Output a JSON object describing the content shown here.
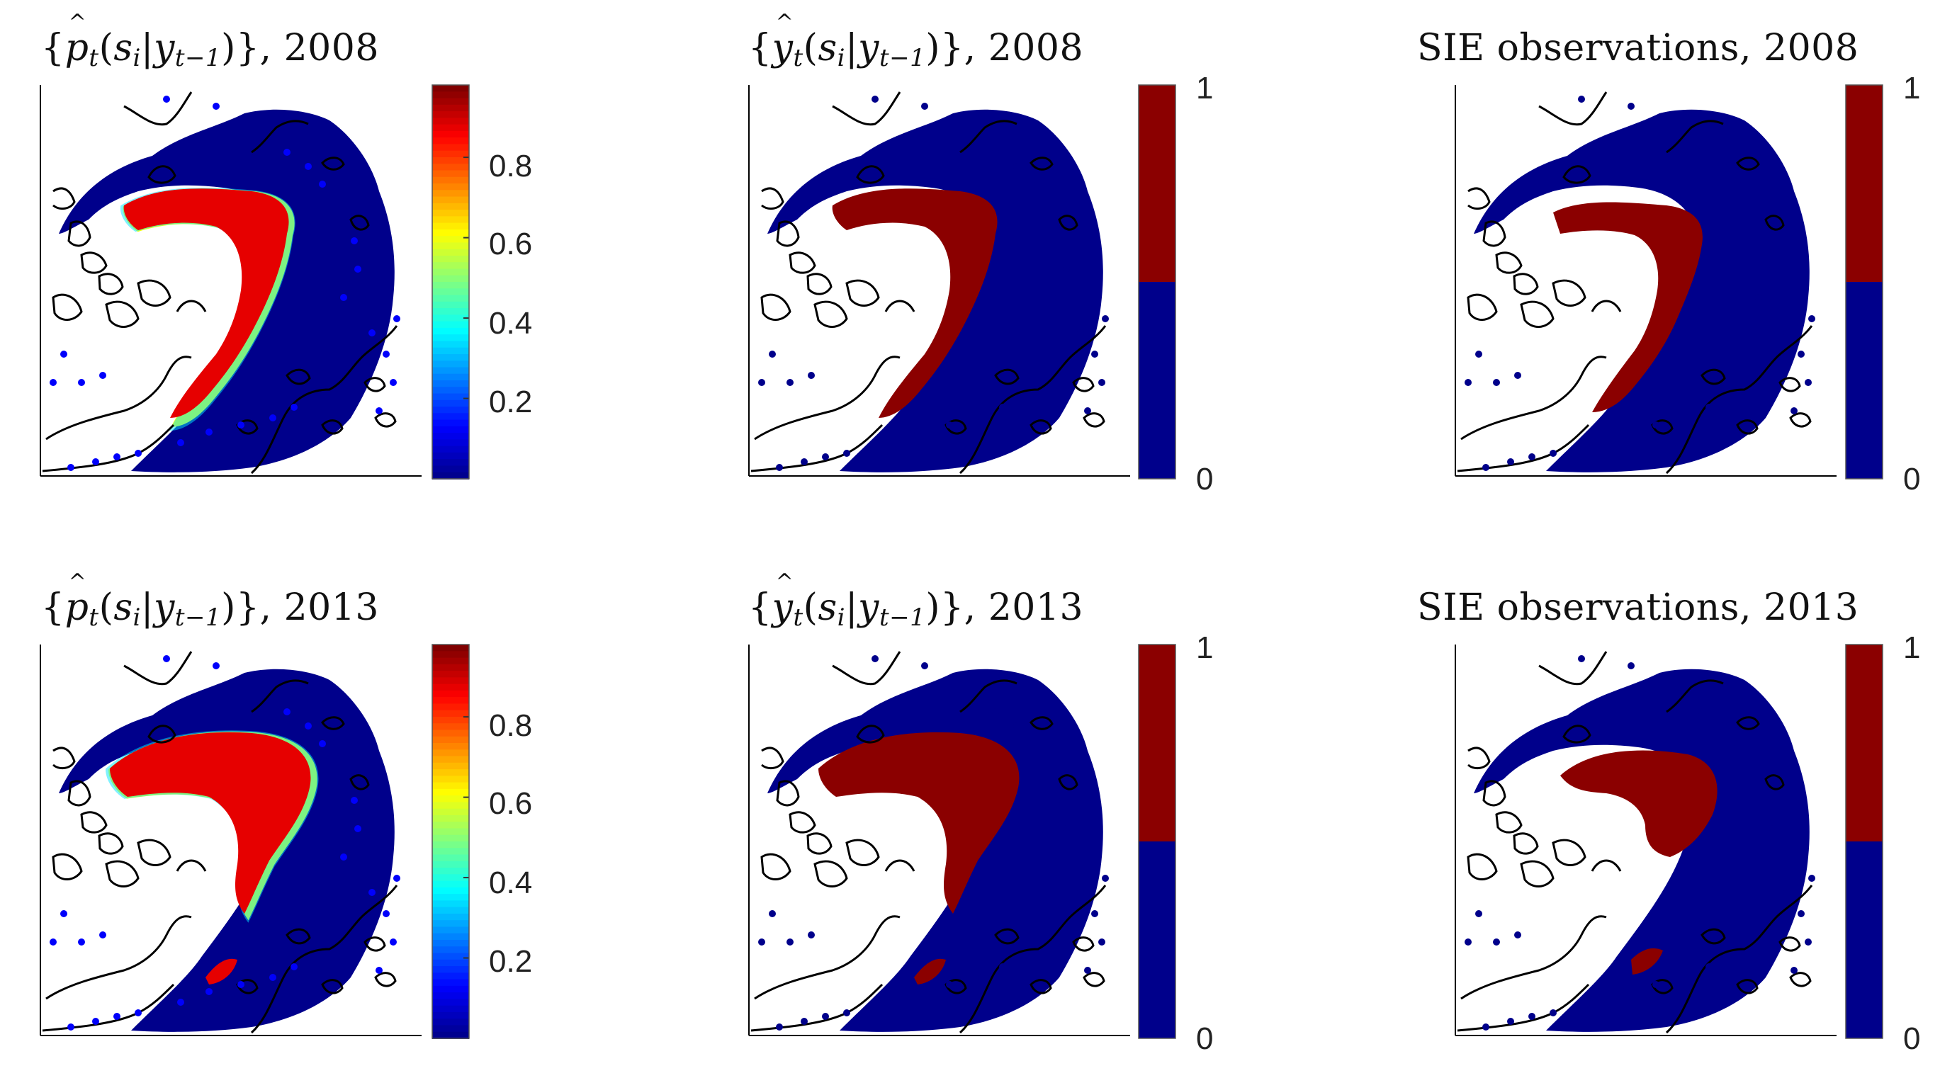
{
  "figure": {
    "panels": [
      {
        "id": "p1",
        "kind": "probability",
        "year": "2008",
        "title_text": "{p̂t(si|yt−1)}, 2008",
        "colorbar": {
          "type": "continuous",
          "colormap": "jet",
          "ticks": [
            "0.8",
            "0.6",
            "0.4",
            "0.2"
          ]
        }
      },
      {
        "id": "p2",
        "kind": "binary-prediction",
        "year": "2008",
        "title_text": "{ŷt(si|yt−1)}, 2008",
        "colorbar": {
          "type": "binary",
          "ticks": [
            "1",
            "0"
          ]
        }
      },
      {
        "id": "p3",
        "kind": "observation",
        "year": "2008",
        "title_text": "SIE observations, 2008",
        "colorbar": {
          "type": "binary",
          "ticks": [
            "1",
            "0"
          ]
        }
      },
      {
        "id": "p4",
        "kind": "probability",
        "year": "2013",
        "title_text": "{p̂t(si|yt−1)}, 2013",
        "colorbar": {
          "type": "continuous",
          "colormap": "jet",
          "ticks": [
            "0.8",
            "0.6",
            "0.4",
            "0.2"
          ]
        }
      },
      {
        "id": "p5",
        "kind": "binary-prediction",
        "year": "2013",
        "title_text": "{ŷt(si|yt−1)}, 2013",
        "colorbar": {
          "type": "binary",
          "ticks": [
            "1",
            "0"
          ]
        }
      },
      {
        "id": "p6",
        "kind": "observation",
        "year": "2013",
        "title_text": "SIE observations, 2013",
        "colorbar": {
          "type": "binary",
          "ticks": [
            "1",
            "0"
          ]
        }
      }
    ],
    "colors": {
      "ice": "#8b0000",
      "water": "#00008b",
      "coast": "#000000",
      "jet": [
        "#00008f",
        "#0000ff",
        "#0080ff",
        "#00ffff",
        "#80ff80",
        "#ffff00",
        "#ff8000",
        "#ff0000",
        "#800000"
      ]
    }
  }
}
